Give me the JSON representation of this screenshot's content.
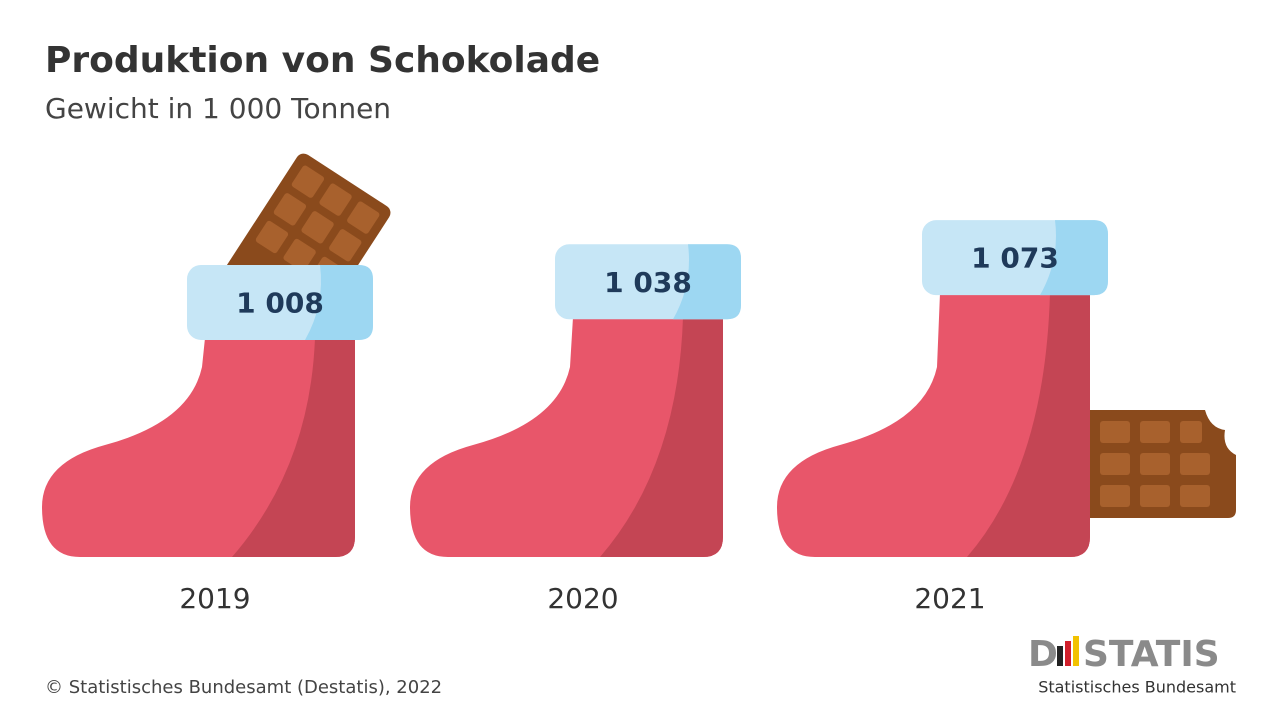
{
  "chart_data": {
    "type": "bar",
    "title": "Produktion von Schokolade",
    "subtitle": "Gewicht in 1 000 Tonnen",
    "categories": [
      "2019",
      "2020",
      "2021"
    ],
    "values": [
      1008,
      1038,
      1073
    ],
    "value_labels": [
      "1 008",
      "1 038",
      "1 073"
    ],
    "color": "#e8566a",
    "source": "© Statistisches Bundesamt (Destatis), 2022",
    "logo": {
      "start": "D",
      "end": "STATIS",
      "subline": "Statistisches Bundesamt"
    }
  }
}
